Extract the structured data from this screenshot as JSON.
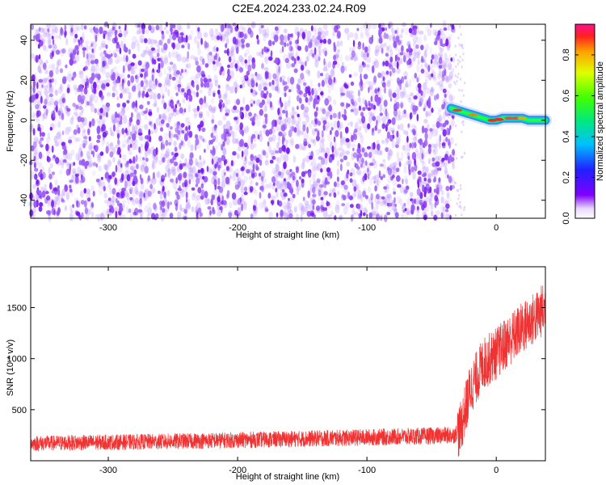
{
  "title": "C2E4.2024.233.02.24.R09",
  "chart_data": [
    {
      "type": "heatmap",
      "xlabel": "Height of straight line (km)",
      "ylabel": "Frequency (Hz)",
      "xlim": [
        -360,
        38
      ],
      "ylim": [
        -49,
        48
      ],
      "xticks": [
        -300,
        -200,
        -100,
        0
      ],
      "yticks": [
        -40,
        -20,
        0,
        20,
        40
      ],
      "noise_region_x": [
        -360,
        -33
      ],
      "signal_track": {
        "x": [
          -35,
          -30,
          -25,
          -20,
          -15,
          -10,
          -5,
          0,
          5,
          10,
          15,
          20,
          25,
          30,
          38
        ],
        "y": [
          6,
          5,
          4,
          3,
          2,
          1,
          0,
          0,
          1,
          1,
          1,
          1,
          0,
          0,
          0
        ]
      },
      "colorbar": {
        "label": "Normalized spectral amplitude",
        "range": [
          0.0,
          0.95
        ],
        "ticks": [
          0.0,
          0.2,
          0.4,
          0.6,
          0.8
        ],
        "colormap": "rainbow"
      },
      "grid": false,
      "color_noise": "#7a1ef0"
    },
    {
      "type": "line",
      "xlabel": "Height of straight line (km)",
      "ylabel": "SNR (10 * v/v)",
      "xlim": [
        -360,
        38
      ],
      "ylim": [
        0,
        1900
      ],
      "xticks": [
        -300,
        -200,
        -100,
        0
      ],
      "yticks": [
        500,
        1000,
        1500
      ],
      "color": "#f03232",
      "trend": {
        "x": [
          -360,
          -250,
          -150,
          -60,
          -33,
          -28,
          -20,
          -10,
          0,
          10,
          20,
          30,
          38
        ],
        "y": [
          170,
          190,
          215,
          240,
          250,
          300,
          700,
          950,
          1050,
          1180,
          1300,
          1400,
          1500
        ]
      },
      "grid": false
    }
  ]
}
